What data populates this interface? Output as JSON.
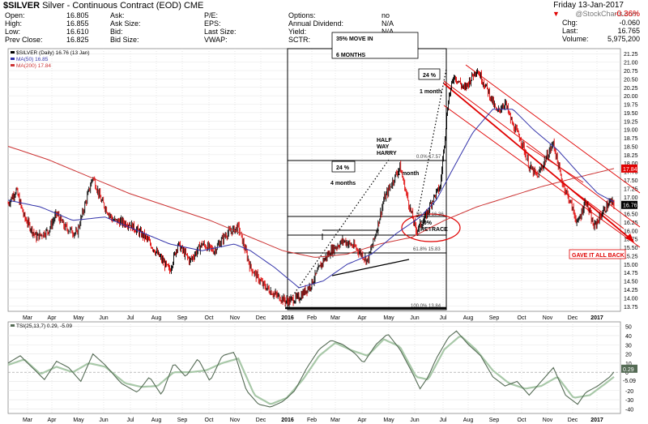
{
  "header": {
    "symbol": "$SILVER",
    "name": "Silver - Continuous Contract (EOD)",
    "exchange": "CME",
    "date": "Friday 13-Jan-2017",
    "brand": "@StockCharts.com",
    "change_pct": "-0.36%"
  },
  "quote": {
    "col1": [
      {
        "label": "Open:",
        "value": "16.805"
      },
      {
        "label": "High:",
        "value": "16.855"
      },
      {
        "label": "Low:",
        "value": "16.610"
      },
      {
        "label": "Prev Close:",
        "value": "16.825"
      }
    ],
    "col2": [
      {
        "label": "Ask:",
        "value": ""
      },
      {
        "label": "Ask Size:",
        "value": ""
      },
      {
        "label": "Bid:",
        "value": ""
      },
      {
        "label": "Bid Size:",
        "value": ""
      }
    ],
    "col3": [
      {
        "label": "P/E:",
        "value": ""
      },
      {
        "label": "EPS:",
        "value": ""
      },
      {
        "label": "Last Size:",
        "value": ""
      },
      {
        "label": "VWAP:",
        "value": ""
      }
    ],
    "col4": [
      {
        "label": "Options:",
        "value": "no"
      },
      {
        "label": "Annual Dividend:",
        "value": "N/A"
      },
      {
        "label": "Yield:",
        "value": "N/A"
      },
      {
        "label": "SCTR:",
        "value": ""
      }
    ],
    "right": [
      {
        "label": "Chg:",
        "value": "-0.060"
      },
      {
        "label": "Last:",
        "value": "16.765"
      },
      {
        "label": "Volume:",
        "value": "5,975,200"
      }
    ]
  },
  "colors": {
    "price_up": "#000000",
    "price_down": "#e00000",
    "ma50": "#3333aa",
    "ma200": "#cc3333",
    "tsi": "#556b55",
    "tsi_signal": "#a8c8a8",
    "annot_red": "#e00000"
  },
  "chart_data": [
    {
      "type": "line",
      "name": "price",
      "legend": [
        {
          "label": "$SILVER (Daily) 16.76 (13 Jan)",
          "color": "#000000"
        },
        {
          "label": "MA(50) 16.85",
          "color": "#3333aa"
        },
        {
          "label": "MA(200) 17.84",
          "color": "#cc3333"
        }
      ],
      "x_labels": [
        "Mar",
        "Apr",
        "May",
        "Jun",
        "Jul",
        "Aug",
        "Sep",
        "Oct",
        "Nov",
        "Dec",
        "2016",
        "Feb",
        "Mar",
        "Apr",
        "May",
        "Jun",
        "Jul",
        "Aug",
        "Sep",
        "Oct",
        "Nov",
        "Dec",
        "2017"
      ],
      "y_ticks": [
        "21.25",
        "21.00",
        "20.75",
        "20.50",
        "20.25",
        "20.00",
        "19.75",
        "19.50",
        "19.25",
        "19.00",
        "18.75",
        "18.50",
        "18.25",
        "18.00",
        "17.75",
        "17.50",
        "17.25",
        "17.00",
        "16.75",
        "16.50",
        "16.25",
        "16.00",
        "15.75",
        "15.50",
        "15.25",
        "15.00",
        "14.75",
        "14.50",
        "14.25",
        "14.00",
        "13.75"
      ],
      "ylim": [
        13.6,
        21.4
      ],
      "price_tag": "16.76",
      "ma200_tag": "17.84",
      "close_keypoints": [
        [
          0,
          16.8
        ],
        [
          10,
          17.2
        ],
        [
          20,
          16.4
        ],
        [
          35,
          15.8
        ],
        [
          50,
          16.0
        ],
        [
          60,
          16.5
        ],
        [
          70,
          16.1
        ],
        [
          85,
          15.9
        ],
        [
          105,
          17.6
        ],
        [
          115,
          16.9
        ],
        [
          130,
          16.3
        ],
        [
          150,
          16.2
        ],
        [
          170,
          15.8
        ],
        [
          185,
          15.3
        ],
        [
          200,
          14.8
        ],
        [
          210,
          15.6
        ],
        [
          225,
          15.1
        ],
        [
          240,
          15.6
        ],
        [
          255,
          15.4
        ],
        [
          270,
          15.9
        ],
        [
          285,
          16.1
        ],
        [
          300,
          14.9
        ],
        [
          315,
          14.4
        ],
        [
          330,
          14.1
        ],
        [
          345,
          13.9
        ],
        [
          360,
          14.0
        ],
        [
          375,
          14.4
        ],
        [
          390,
          15.1
        ],
        [
          400,
          15.4
        ],
        [
          415,
          15.7
        ],
        [
          430,
          15.5
        ],
        [
          445,
          15.1
        ],
        [
          455,
          15.9
        ],
        [
          465,
          16.9
        ],
        [
          475,
          17.4
        ],
        [
          485,
          17.9
        ],
        [
          495,
          16.9
        ],
        [
          505,
          16.0
        ],
        [
          515,
          16.3
        ],
        [
          525,
          16.9
        ],
        [
          535,
          17.3
        ],
        [
          545,
          19.9
        ],
        [
          552,
          20.6
        ],
        [
          565,
          20.2
        ],
        [
          580,
          20.8
        ],
        [
          595,
          20.1
        ],
        [
          605,
          19.5
        ],
        [
          615,
          19.8
        ],
        [
          625,
          19.1
        ],
        [
          635,
          18.7
        ],
        [
          645,
          17.9
        ],
        [
          655,
          17.6
        ],
        [
          665,
          18.1
        ],
        [
          675,
          18.6
        ],
        [
          685,
          17.5
        ],
        [
          695,
          16.9
        ],
        [
          705,
          16.2
        ],
        [
          715,
          16.9
        ],
        [
          725,
          16.1
        ],
        [
          735,
          16.5
        ],
        [
          745,
          16.85
        ],
        [
          750,
          16.76
        ]
      ],
      "ma50_keypoints": [
        [
          0,
          16.9
        ],
        [
          40,
          16.7
        ],
        [
          80,
          16.3
        ],
        [
          120,
          16.4
        ],
        [
          160,
          16.0
        ],
        [
          200,
          15.6
        ],
        [
          240,
          15.4
        ],
        [
          280,
          15.6
        ],
        [
          300,
          15.4
        ],
        [
          330,
          14.9
        ],
        [
          360,
          14.3
        ],
        [
          390,
          14.5
        ],
        [
          420,
          15.0
        ],
        [
          450,
          15.3
        ],
        [
          480,
          15.9
        ],
        [
          510,
          16.4
        ],
        [
          530,
          16.9
        ],
        [
          550,
          17.8
        ],
        [
          575,
          18.9
        ],
        [
          600,
          19.6
        ],
        [
          625,
          19.6
        ],
        [
          650,
          19.0
        ],
        [
          680,
          18.4
        ],
        [
          710,
          17.6
        ],
        [
          730,
          17.1
        ],
        [
          750,
          16.85
        ]
      ],
      "ma200_keypoints": [
        [
          0,
          18.5
        ],
        [
          50,
          18.1
        ],
        [
          100,
          17.6
        ],
        [
          150,
          17.1
        ],
        [
          200,
          16.7
        ],
        [
          250,
          16.3
        ],
        [
          300,
          15.8
        ],
        [
          340,
          15.4
        ],
        [
          380,
          15.2
        ],
        [
          420,
          15.3
        ],
        [
          460,
          15.6
        ],
        [
          500,
          15.8
        ],
        [
          540,
          16.3
        ],
        [
          580,
          16.7
        ],
        [
          620,
          17.0
        ],
        [
          660,
          17.3
        ],
        [
          700,
          17.55
        ],
        [
          750,
          17.84
        ]
      ],
      "annotations": {
        "move_box": [
          "35% MOVE IN",
          "6 MONTHS"
        ],
        "pct_left": "24 %",
        "pct_right": "24 %",
        "four_months": "4 months",
        "one_month_a": "1 month",
        "one_month_b": "1 month",
        "half_way": [
          "HALF",
          "WAY",
          "HARRY"
        ],
        "retrace": [
          "50%",
          "RETRACE"
        ],
        "gave_back": "GAVE IT ALL BACK",
        "fib_0": "0.0% 17.57",
        "fib_50": "50.0% 16.36",
        "fib_61": "61.8% 15.83",
        "fib_100": "100.0% 13.84"
      }
    },
    {
      "type": "line",
      "name": "tsi",
      "legend": "TSI(25,13,7) 0.29, -5.09",
      "y_ticks": [
        "50",
        "40",
        "30",
        "20",
        "10",
        "0",
        "-10",
        "-20",
        "-30",
        "-40"
      ],
      "ylim": [
        -45,
        55
      ],
      "tags": [
        "0.29",
        "-5.09"
      ],
      "x_labels": [
        "Mar",
        "Apr",
        "May",
        "Jun",
        "Jul",
        "Aug",
        "Sep",
        "Oct",
        "Nov",
        "Dec",
        "2016",
        "Feb",
        "Mar",
        "Apr",
        "May",
        "Jun",
        "Jul",
        "Aug",
        "Sep",
        "Oct",
        "Nov",
        "Dec",
        "2017"
      ],
      "tsi_keypoints": [
        [
          0,
          10
        ],
        [
          15,
          18
        ],
        [
          30,
          5
        ],
        [
          45,
          -8
        ],
        [
          60,
          12
        ],
        [
          75,
          5
        ],
        [
          90,
          -10
        ],
        [
          105,
          20
        ],
        [
          120,
          8
        ],
        [
          140,
          -12
        ],
        [
          160,
          -22
        ],
        [
          175,
          -5
        ],
        [
          190,
          -25
        ],
        [
          205,
          10
        ],
        [
          220,
          -5
        ],
        [
          235,
          15
        ],
        [
          250,
          -10
        ],
        [
          265,
          18
        ],
        [
          280,
          22
        ],
        [
          295,
          -20
        ],
        [
          310,
          -35
        ],
        [
          325,
          -38
        ],
        [
          340,
          -32
        ],
        [
          355,
          -20
        ],
        [
          370,
          5
        ],
        [
          385,
          25
        ],
        [
          400,
          35
        ],
        [
          415,
          30
        ],
        [
          430,
          20
        ],
        [
          440,
          10
        ],
        [
          455,
          30
        ],
        [
          470,
          42
        ],
        [
          485,
          25
        ],
        [
          500,
          0
        ],
        [
          510,
          -18
        ],
        [
          520,
          -5
        ],
        [
          530,
          15
        ],
        [
          545,
          38
        ],
        [
          555,
          45
        ],
        [
          570,
          30
        ],
        [
          585,
          18
        ],
        [
          600,
          -5
        ],
        [
          615,
          -15
        ],
        [
          630,
          -10
        ],
        [
          645,
          -25
        ],
        [
          660,
          -10
        ],
        [
          675,
          5
        ],
        [
          690,
          -25
        ],
        [
          705,
          -35
        ],
        [
          715,
          -22
        ],
        [
          730,
          -15
        ],
        [
          745,
          -5
        ],
        [
          750,
          0.29
        ]
      ],
      "signal_keypoints": [
        [
          0,
          8
        ],
        [
          20,
          14
        ],
        [
          40,
          -2
        ],
        [
          60,
          6
        ],
        [
          80,
          0
        ],
        [
          100,
          10
        ],
        [
          120,
          6
        ],
        [
          145,
          -12
        ],
        [
          165,
          -16
        ],
        [
          185,
          -15
        ],
        [
          205,
          0
        ],
        [
          225,
          0
        ],
        [
          245,
          2
        ],
        [
          265,
          10
        ],
        [
          285,
          15
        ],
        [
          305,
          -25
        ],
        [
          325,
          -35
        ],
        [
          345,
          -28
        ],
        [
          365,
          -8
        ],
        [
          385,
          18
        ],
        [
          405,
          32
        ],
        [
          425,
          24
        ],
        [
          445,
          18
        ],
        [
          465,
          36
        ],
        [
          485,
          28
        ],
        [
          505,
          -5
        ],
        [
          520,
          -8
        ],
        [
          540,
          25
        ],
        [
          560,
          40
        ],
        [
          580,
          24
        ],
        [
          600,
          2
        ],
        [
          620,
          -12
        ],
        [
          640,
          -18
        ],
        [
          660,
          -15
        ],
        [
          680,
          -5
        ],
        [
          700,
          -28
        ],
        [
          720,
          -25
        ],
        [
          740,
          -12
        ],
        [
          750,
          -5.09
        ]
      ]
    }
  ]
}
